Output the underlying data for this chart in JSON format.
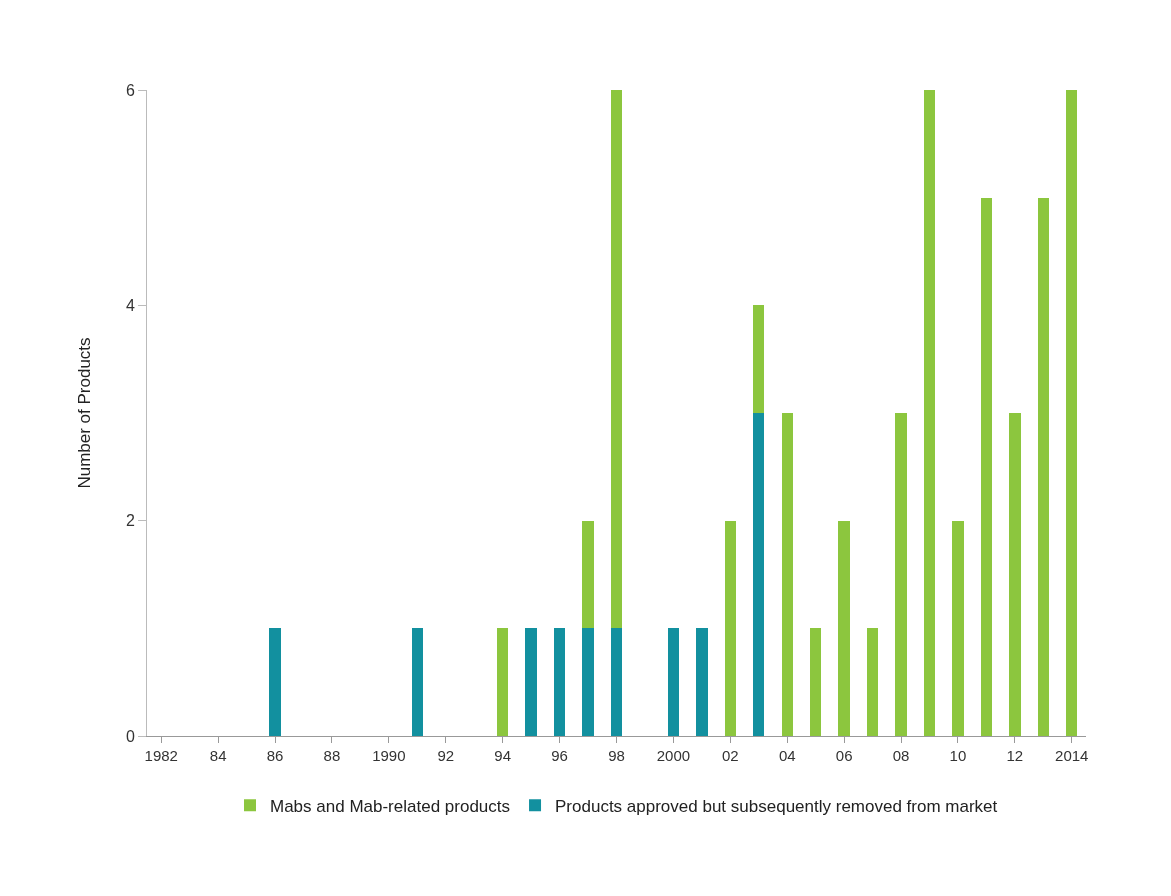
{
  "chart_data": {
    "type": "bar",
    "ylabel": "Number of Products",
    "stacked": true,
    "grid": false,
    "legend": "bottom",
    "categories": [
      "1982",
      null,
      "84",
      null,
      "86",
      null,
      "88",
      null,
      "1990",
      null,
      "92",
      null,
      "94",
      null,
      "96",
      null,
      "98",
      null,
      "2000",
      null,
      "02",
      null,
      "04",
      null,
      "06",
      null,
      "08",
      null,
      "10",
      null,
      "12",
      null,
      "2014"
    ],
    "ylim": [
      0,
      6
    ],
    "yticks": [
      0,
      2,
      4,
      6
    ],
    "series": [
      {
        "name": "Products approved but subsequently removed from market",
        "color": "#12909f",
        "values": [
          0,
          0,
          0,
          0,
          1,
          0,
          0,
          0,
          0,
          1,
          0,
          0,
          0,
          1,
          1,
          1,
          1,
          0,
          1,
          1,
          0,
          3,
          0,
          0,
          0,
          0,
          0,
          0,
          0,
          0,
          0,
          0,
          0
        ]
      },
      {
        "name": "Mabs and Mab-related products",
        "color": "#8cc63e",
        "values": [
          0,
          0,
          0,
          0,
          0,
          0,
          0,
          0,
          0,
          0,
          0,
          0,
          1,
          0,
          0,
          1,
          5,
          0,
          0,
          0,
          2,
          1,
          3,
          1,
          2,
          1,
          3,
          6,
          2,
          5,
          3,
          5,
          6
        ]
      }
    ]
  }
}
